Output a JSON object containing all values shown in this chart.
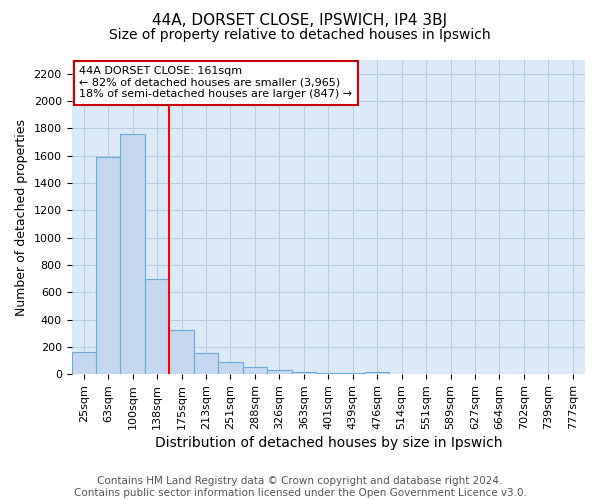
{
  "title": "44A, DORSET CLOSE, IPSWICH, IP4 3BJ",
  "subtitle": "Size of property relative to detached houses in Ipswich",
  "xlabel": "Distribution of detached houses by size in Ipswich",
  "ylabel": "Number of detached properties",
  "categories": [
    "25sqm",
    "63sqm",
    "100sqm",
    "138sqm",
    "175sqm",
    "213sqm",
    "251sqm",
    "288sqm",
    "326sqm",
    "363sqm",
    "401sqm",
    "439sqm",
    "476sqm",
    "514sqm",
    "551sqm",
    "589sqm",
    "627sqm",
    "664sqm",
    "702sqm",
    "739sqm",
    "777sqm"
  ],
  "values": [
    160,
    1590,
    1760,
    700,
    320,
    155,
    90,
    50,
    30,
    15,
    10,
    10,
    15,
    0,
    0,
    0,
    0,
    0,
    0,
    0,
    0
  ],
  "bar_color": "#c5d8ef",
  "bar_edge_color": "#6aaad4",
  "red_line_x": 4,
  "annotation_line1": "44A DORSET CLOSE: 161sqm",
  "annotation_line2": "← 82% of detached houses are smaller (3,965)",
  "annotation_line3": "18% of semi-detached houses are larger (847) →",
  "annotation_box_color": "#ffffff",
  "annotation_box_edge_color": "#cc0000",
  "ylim": [
    0,
    2300
  ],
  "yticks": [
    0,
    200,
    400,
    600,
    800,
    1000,
    1200,
    1400,
    1600,
    1800,
    2000,
    2200
  ],
  "footer": "Contains HM Land Registry data © Crown copyright and database right 2024.\nContains public sector information licensed under the Open Government Licence v3.0.",
  "background_color": "#ffffff",
  "plot_bg_color": "#dce9f7",
  "grid_color": "#b8ccdf",
  "title_fontsize": 11,
  "subtitle_fontsize": 10,
  "xlabel_fontsize": 10,
  "ylabel_fontsize": 9,
  "tick_fontsize": 8,
  "annotation_fontsize": 8,
  "footer_fontsize": 7.5
}
